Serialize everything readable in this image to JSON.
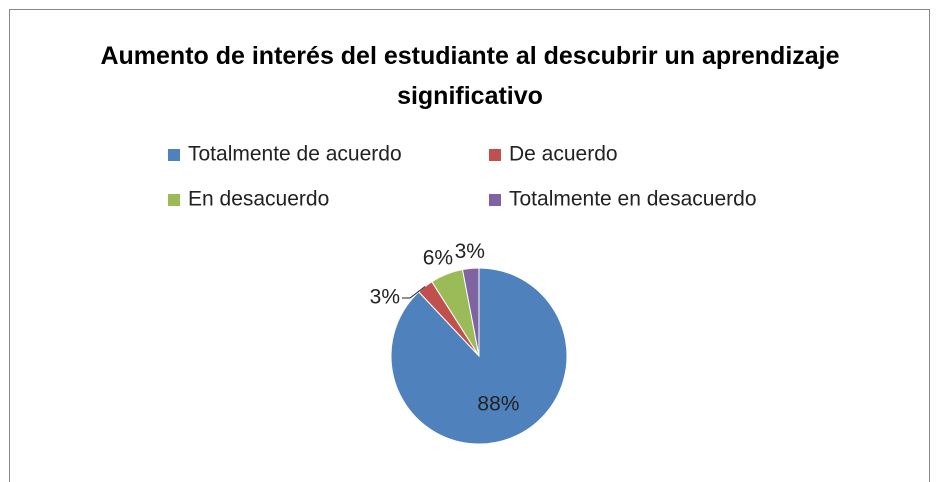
{
  "chart_data": {
    "type": "pie",
    "title": "Aumento de interés del estudiante al descubrir un aprendizaje significativo",
    "categories": [
      "Totalmente de acuerdo",
      "De acuerdo",
      "En desacuerdo",
      "Totalmente en desacuerdo"
    ],
    "values": [
      88,
      3,
      6,
      3
    ],
    "value_labels": [
      "88%",
      "3%",
      "6%",
      "3%"
    ],
    "colors": [
      "#4f81bd",
      "#c0504d",
      "#9bbb59",
      "#8064a2"
    ],
    "legend": "top"
  }
}
